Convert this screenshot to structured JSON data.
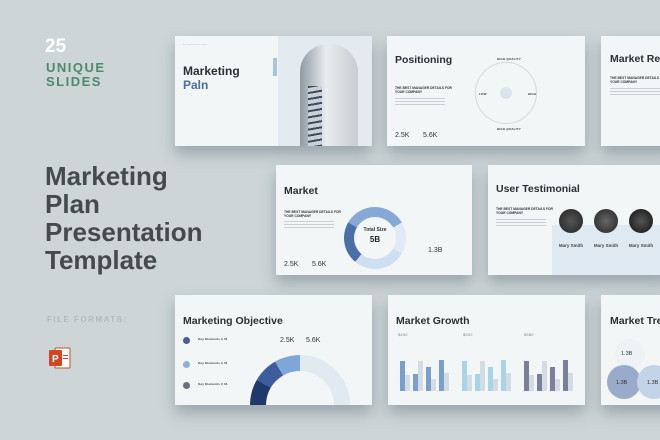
{
  "promo": {
    "count": "25",
    "unique": "UNIQUE SLIDES",
    "title": [
      "Marketing",
      "Plan",
      "Presentation",
      "Template"
    ],
    "file_formats": "FILE FORMATS:",
    "format_icon": "powerpoint-icon",
    "accent": "#4d8a6b"
  },
  "slides": {
    "cover": {
      "title1": "Marketing",
      "title2": "Paln",
      "photo": "building-photo"
    },
    "positioning": {
      "title": "Positioning",
      "subtitle": "THE BEST MANAGER DETAILS FOR YOUR COMPANY",
      "top": "HIGH QUALITY",
      "bottom": "HIGH QUALITY",
      "left": "LOW",
      "right": "HIGH",
      "stat1": "2.5K",
      "stat2": "5.6K"
    },
    "research": {
      "title": "Market Research",
      "subtitle": "THE BEST MANAGER DETAILS FOR YOUR COMPANY"
    },
    "market": {
      "title": "Market",
      "subtitle": "THE BEST MANAGER DETAILS FOR YOUR COMPANY",
      "donut_label": "Total Size",
      "donut_value": "5B",
      "side_value": "1.3B",
      "stat1": "2.5K",
      "stat2": "5.6K"
    },
    "testimonial": {
      "title": "User Testimonial",
      "subtitle": "THE BEST MANAGER DETAILS FOR YOUR COMPANY",
      "names": [
        "Mary Smith",
        "Mary Smith",
        "Mary Smith"
      ]
    },
    "objective": {
      "title": "Marketing Objective",
      "items": [
        "Key Elements # 01",
        "Key Elements # 01",
        "Key Elements # 01"
      ],
      "stat1": "2.5K",
      "stat2": "5.6K"
    },
    "growth": {
      "title": "Market Growth",
      "groups": [
        "$450",
        "$502",
        "$580"
      ],
      "colors": [
        "#7b9fcb",
        "#a9d3e6",
        "#7c7f99"
      ]
    },
    "trend": {
      "title": "Market Trend",
      "values": [
        "1.3B",
        "1.3B",
        "1.3B"
      ]
    }
  }
}
